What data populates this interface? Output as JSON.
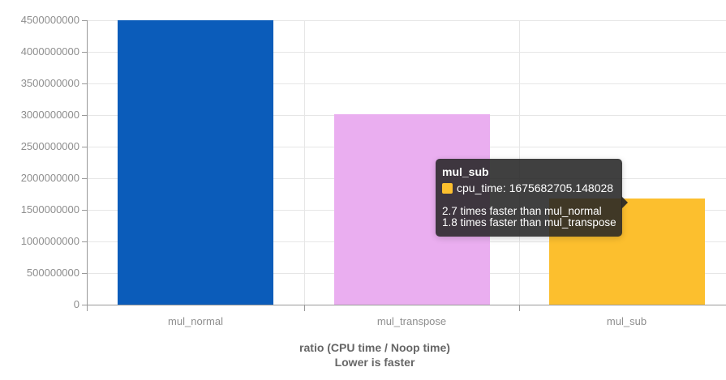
{
  "chart_data": {
    "type": "bar",
    "categories": [
      "mul_normal",
      "mul_transpose",
      "mul_sub"
    ],
    "series": [
      {
        "name": "cpu_time",
        "values": [
          4524343304,
          3016228869,
          1675682705.148028
        ]
      }
    ],
    "bar_colors": [
      "#0b5cba",
      "#eaaef0",
      "#fcbf2e"
    ],
    "ylim": [
      0,
      4500000000
    ],
    "ytick_step": 500000000,
    "ytick_labels": [
      "0",
      "500000000",
      "1000000000",
      "1500000000",
      "2000000000",
      "2500000000",
      "3000000000",
      "3500000000",
      "4000000000",
      "4500000000"
    ],
    "xlabel_line1": "ratio (CPU time / Noop time)",
    "xlabel_line2": "Lower is faster",
    "grid": true,
    "legend_position": "none"
  },
  "tooltip": {
    "title": "mul_sub",
    "swatch_color": "#fcbf2e",
    "value_line": "cpu_time: 1675682705.148028",
    "notes": [
      "2.7 times faster than mul_normal",
      "1.8 times faster than mul_transpose"
    ]
  },
  "colors": {
    "axis": "#999999",
    "gridline": "#e6e6e6",
    "axis_label": "#8e8e8e",
    "axis_title": "#666666",
    "tooltip_bg": "rgba(38,38,38,0.88)"
  }
}
